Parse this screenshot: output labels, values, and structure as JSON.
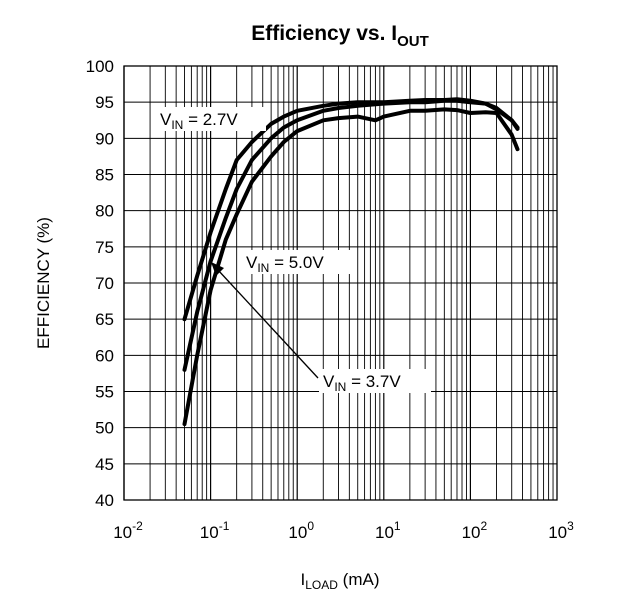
{
  "chart_data": {
    "type": "line",
    "title": "Efficiency vs. I",
    "title_sub": "OUT",
    "xlabel": "I",
    "xlabel_sub": "LOAD",
    "xlabel_unit": " (mA)",
    "ylabel": "EFFICIENCY (%)",
    "xscale": "log",
    "xlim": [
      0.01,
      1000
    ],
    "ylim": [
      40,
      100
    ],
    "grid": true,
    "x_ticks": [
      {
        "base": "10",
        "exp": "-2",
        "value": 0.01
      },
      {
        "base": "10",
        "exp": "-1",
        "value": 0.1
      },
      {
        "base": "10",
        "exp": "0",
        "value": 1
      },
      {
        "base": "10",
        "exp": "1",
        "value": 10
      },
      {
        "base": "10",
        "exp": "2",
        "value": 100
      },
      {
        "base": "10",
        "exp": "3",
        "value": 1000
      }
    ],
    "y_ticks": [
      "40",
      "45",
      "50",
      "55",
      "60",
      "65",
      "70",
      "75",
      "80",
      "85",
      "90",
      "95",
      "100"
    ],
    "series": [
      {
        "label_main": "V",
        "label_sub": "IN",
        "label_rest": " = 2.7V",
        "x": [
          0.05,
          0.07,
          0.1,
          0.15,
          0.2,
          0.3,
          0.5,
          0.7,
          1,
          2,
          3,
          5,
          10,
          20,
          30,
          50,
          70,
          100,
          150,
          200,
          300,
          350
        ],
        "y": [
          65,
          71,
          77,
          83,
          87,
          89.5,
          92,
          93,
          93.8,
          94.5,
          94.8,
          95,
          95,
          95.2,
          95.3,
          95.3,
          95.4,
          95.2,
          94.8,
          94.2,
          92.5,
          91.5
        ]
      },
      {
        "label_main": "V",
        "label_sub": "IN",
        "label_rest": " = 3.7V",
        "x": [
          0.05,
          0.07,
          0.1,
          0.15,
          0.2,
          0.3,
          0.5,
          0.7,
          1,
          2,
          3,
          5,
          10,
          20,
          30,
          50,
          70,
          100,
          150,
          200,
          300,
          350
        ],
        "y": [
          58,
          66,
          73,
          79,
          83,
          87,
          90,
          91.5,
          92.5,
          93.8,
          94.2,
          94.5,
          94.8,
          95,
          95,
          95.2,
          95.2,
          95,
          94.8,
          94,
          92.5,
          91.3
        ]
      },
      {
        "label_main": "V",
        "label_sub": "IN",
        "label_rest": " = 5.0V",
        "x": [
          0.05,
          0.07,
          0.1,
          0.15,
          0.2,
          0.3,
          0.5,
          0.7,
          1,
          2,
          3,
          5,
          8,
          10,
          20,
          30,
          50,
          70,
          100,
          150,
          200,
          300,
          350
        ],
        "y": [
          50.5,
          60,
          69,
          76,
          79.5,
          84,
          87.5,
          89.5,
          91,
          92.5,
          92.8,
          93,
          92.5,
          93,
          93.8,
          93.8,
          94,
          93.9,
          93.5,
          93.6,
          93.5,
          90.5,
          88.5
        ]
      }
    ]
  }
}
